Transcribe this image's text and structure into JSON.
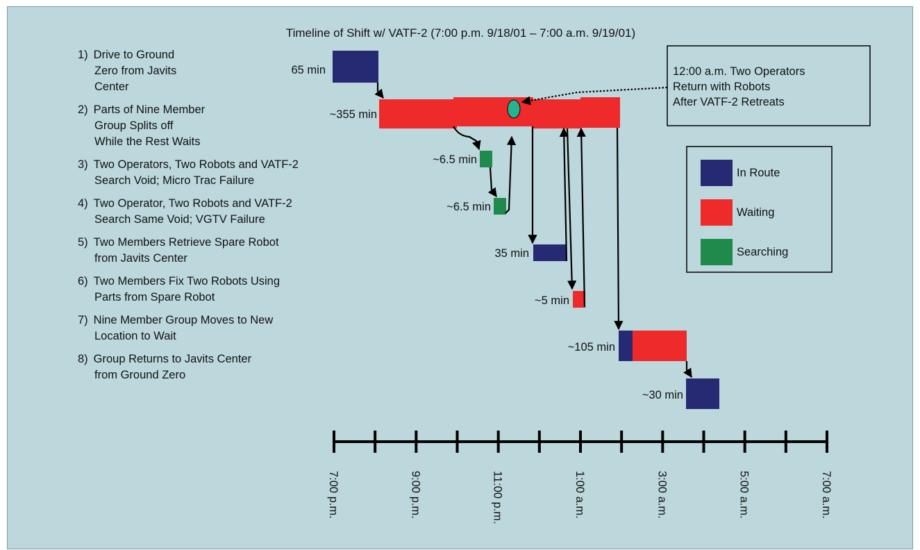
{
  "title": "Timeline of Shift w/ VATF-2 (7:00 p.m. 9/18/01 – 7:00 a.m. 9/19/01)",
  "colors": {
    "background": "#bdd8dd",
    "in_route": "#262a73",
    "waiting": "#ee2a2a",
    "searching": "#1f8a4c",
    "ellipse": "#26b38f"
  },
  "steps": [
    {
      "number": "1)",
      "lines": [
        "Drive to Ground",
        "Zero from Javits",
        "Center"
      ]
    },
    {
      "number": "2)",
      "lines": [
        "Parts of Nine Member",
        "Group Splits off",
        "While the Rest Waits"
      ]
    },
    {
      "number": "3)",
      "lines": [
        "Two Operators, Two Robots and VATF-2",
        "Search Void; Micro Trac Failure"
      ]
    },
    {
      "number": "4)",
      "lines": [
        "Two Operator, Two Robots and VATF-2",
        "Search Same Void; VGTV Failure"
      ]
    },
    {
      "number": "5)",
      "lines": [
        "Two Members Retrieve Spare Robot",
        "from Javits Center"
      ]
    },
    {
      "number": "6)",
      "lines": [
        "Two Members Fix Two Robots Using",
        "Parts from Spare Robot"
      ]
    },
    {
      "number": "7)",
      "lines": [
        "Nine Member Group Moves to New",
        "Location to Wait"
      ]
    },
    {
      "number": "8)",
      "lines": [
        "Group Returns to Javits Center",
        "from Ground Zero"
      ]
    }
  ],
  "durations": {
    "d1": "65 min",
    "d2": "~355 min",
    "d3": "~6.5 min",
    "d4": "~6.5 min",
    "d5": "35 min",
    "d6": "~5 min",
    "d7": "~105 min",
    "d8": "~30 min"
  },
  "callout": {
    "lines": [
      "12:00 a.m. Two Operators",
      "Return with Robots",
      "After VATF-2 Retreats"
    ]
  },
  "legend": {
    "in_route": "In Route",
    "waiting": "Waiting",
    "searching": "Searching"
  },
  "axis": {
    "ticks": [
      "7:00 p.m.",
      "9:00 p.m.",
      "11:00 p.m.",
      "1:00 a.m.",
      "3:00 a.m.",
      "5:00 a.m.",
      "7:00 a.m."
    ]
  }
}
